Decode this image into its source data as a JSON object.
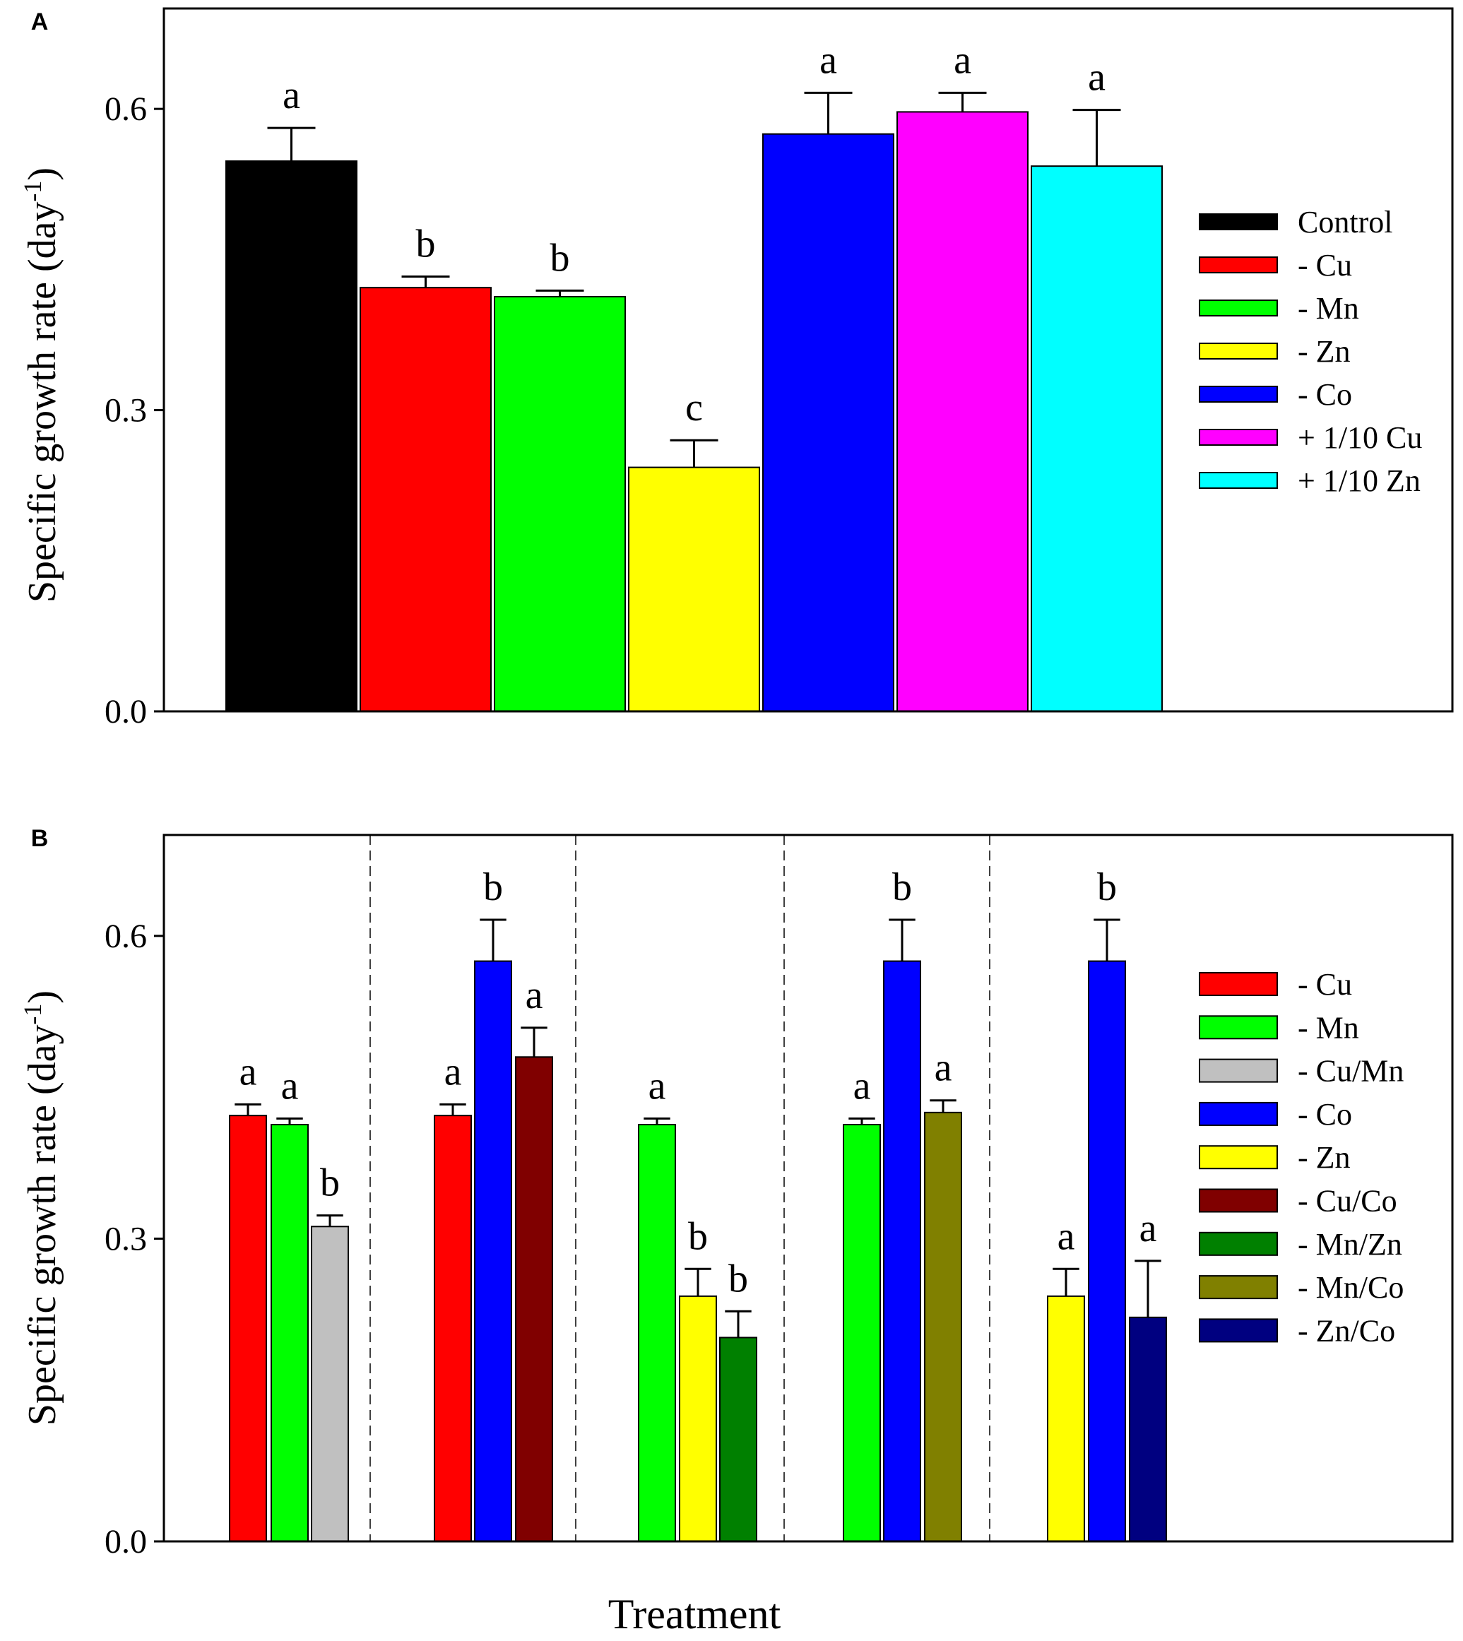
{
  "chart_data": [
    {
      "panel": "A",
      "type": "bar",
      "ylabel": "Specific growth rate (day",
      "ylabel_sup": "-1",
      "ylabel_close": ")",
      "ylim": [
        0,
        0.7
      ],
      "yticks": [
        {
          "value": 0.0,
          "label": "0.0"
        },
        {
          "value": 0.3,
          "label": "0.3"
        },
        {
          "value": 0.6,
          "label": "0.6"
        }
      ],
      "groups": [
        [
          {
            "name": "Control",
            "value": 0.548,
            "err": 0.033,
            "sig": "a",
            "color": "#000000"
          },
          {
            "name": "- Cu",
            "value": 0.422,
            "err": 0.011,
            "sig": "b",
            "color": "#ff0000"
          },
          {
            "name": "- Mn",
            "value": 0.413,
            "err": 0.006,
            "sig": "b",
            "color": "#00ff00"
          },
          {
            "name": "- Zn",
            "value": 0.243,
            "err": 0.027,
            "sig": "c",
            "color": "#ffff00"
          },
          {
            "name": "- Co",
            "value": 0.575,
            "err": 0.041,
            "sig": "a",
            "color": "#0000ff"
          },
          {
            "name": "+ 1/10 Cu",
            "value": 0.597,
            "err": 0.019,
            "sig": "a",
            "color": "#ff00ff"
          },
          {
            "name": "+ 1/10 Zn",
            "value": 0.543,
            "err": 0.056,
            "sig": "a",
            "color": "#00ffff"
          }
        ]
      ],
      "legend": [
        {
          "label": "Control",
          "color": "#000000"
        },
        {
          "label": "- Cu",
          "color": "#ff0000"
        },
        {
          "label": "- Mn",
          "color": "#00ff00"
        },
        {
          "label": "- Zn",
          "color": "#ffff00"
        },
        {
          "label": "- Co",
          "color": "#0000ff"
        },
        {
          "label": "+ 1/10 Cu",
          "color": "#ff00ff"
        },
        {
          "label": "+ 1/10 Zn",
          "color": "#00ffff"
        }
      ]
    },
    {
      "panel": "B",
      "type": "bar",
      "ylabel": "Specific growth rate (day",
      "ylabel_sup": "-1",
      "ylabel_close": ")",
      "xlabel": "Treatment",
      "ylim": [
        0,
        0.7
      ],
      "yticks": [
        {
          "value": 0.0,
          "label": "0.0"
        },
        {
          "value": 0.3,
          "label": "0.3"
        },
        {
          "value": 0.6,
          "label": "0.6"
        }
      ],
      "groups": [
        [
          {
            "name": "- Cu",
            "value": 0.422,
            "err": 0.011,
            "sig": "a",
            "color": "#ff0000"
          },
          {
            "name": "- Mn",
            "value": 0.413,
            "err": 0.006,
            "sig": "a",
            "color": "#00ff00"
          },
          {
            "name": "- Cu/Mn",
            "value": 0.312,
            "err": 0.011,
            "sig": "b",
            "color": "#c0c0c0"
          }
        ],
        [
          {
            "name": "- Cu",
            "value": 0.422,
            "err": 0.011,
            "sig": "a",
            "color": "#ff0000"
          },
          {
            "name": "- Co",
            "value": 0.575,
            "err": 0.041,
            "sig": "b",
            "color": "#0000ff"
          },
          {
            "name": "- Cu/Co",
            "value": 0.48,
            "err": 0.029,
            "sig": "a",
            "color": "#800000"
          }
        ],
        [
          {
            "name": "- Mn",
            "value": 0.413,
            "err": 0.006,
            "sig": "a",
            "color": "#00ff00"
          },
          {
            "name": "- Zn",
            "value": 0.243,
            "err": 0.027,
            "sig": "b",
            "color": "#ffff00"
          },
          {
            "name": "- Mn/Zn",
            "value": 0.202,
            "err": 0.026,
            "sig": "b",
            "color": "#008000"
          }
        ],
        [
          {
            "name": "- Mn",
            "value": 0.413,
            "err": 0.006,
            "sig": "a",
            "color": "#00ff00"
          },
          {
            "name": "- Co",
            "value": 0.575,
            "err": 0.041,
            "sig": "b",
            "color": "#0000ff"
          },
          {
            "name": "- Mn/Co",
            "value": 0.425,
            "err": 0.012,
            "sig": "a",
            "color": "#808000"
          }
        ],
        [
          {
            "name": "- Zn",
            "value": 0.243,
            "err": 0.027,
            "sig": "a",
            "color": "#ffff00"
          },
          {
            "name": "- Co",
            "value": 0.575,
            "err": 0.041,
            "sig": "b",
            "color": "#0000ff"
          },
          {
            "name": "- Zn/Co",
            "value": 0.222,
            "err": 0.056,
            "sig": "a",
            "color": "#000080"
          }
        ]
      ],
      "legend": [
        {
          "label": "- Cu",
          "color": "#ff0000"
        },
        {
          "label": "- Mn",
          "color": "#00ff00"
        },
        {
          "label": "- Cu/Mn",
          "color": "#c0c0c0"
        },
        {
          "label": "- Co",
          "color": "#0000ff"
        },
        {
          "label": "- Zn",
          "color": "#ffff00"
        },
        {
          "label": "- Cu/Co",
          "color": "#800000"
        },
        {
          "label": "- Mn/Zn",
          "color": "#008000"
        },
        {
          "label": "- Mn/Co",
          "color": "#808000"
        },
        {
          "label": "- Zn/Co",
          "color": "#000080"
        }
      ]
    }
  ]
}
